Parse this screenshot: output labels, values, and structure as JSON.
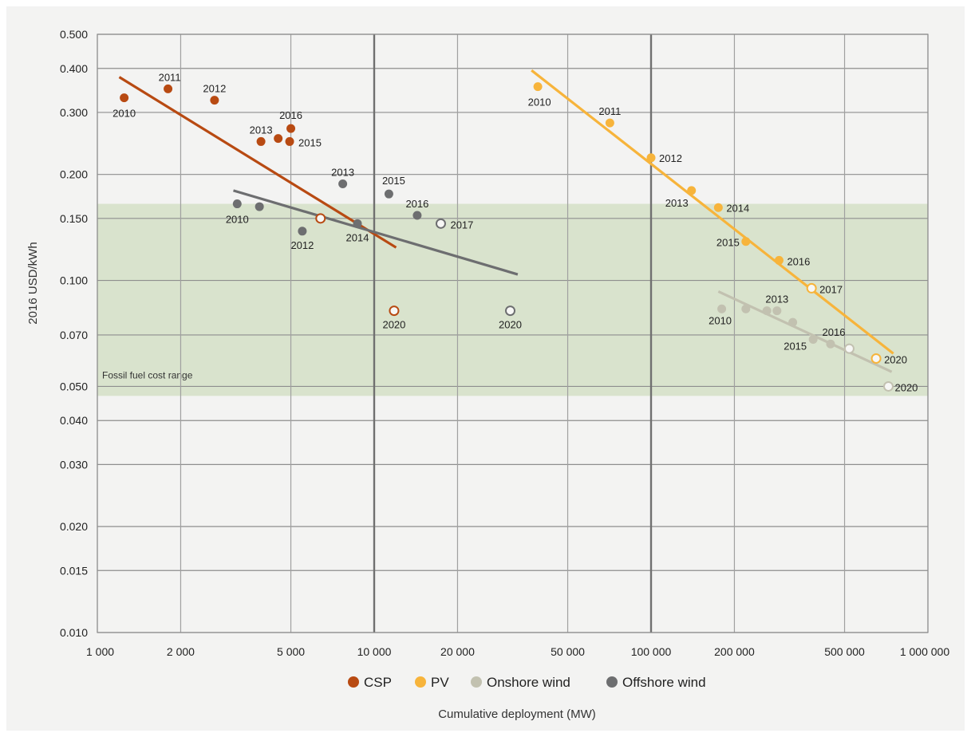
{
  "chart_data": {
    "type": "scatter",
    "title": "",
    "xlabel": "Cumulative deployment (MW)",
    "ylabel": "2016 USD/kWh",
    "x_scale": "log",
    "y_scale": "log",
    "xlim": [
      1000,
      1000000
    ],
    "ylim": [
      0.01,
      0.5
    ],
    "x_ticks": [
      1000,
      2000,
      5000,
      10000,
      20000,
      50000,
      100000,
      200000,
      500000,
      1000000
    ],
    "x_tick_labels": [
      "1 000",
      "2 000",
      "5 000",
      "10 000",
      "20 000",
      "50 000",
      "100 000",
      "200 000",
      "500 000",
      "1 000 000"
    ],
    "y_ticks": [
      0.01,
      0.015,
      0.02,
      0.03,
      0.04,
      0.05,
      0.07,
      0.1,
      0.15,
      0.2,
      0.3,
      0.4,
      0.5
    ],
    "y_tick_labels": [
      "0.010",
      "0.015",
      "0.020",
      "0.030",
      "0.040",
      "0.050",
      "0.070",
      "0.100",
      "0.150",
      "0.200",
      "0.300",
      "0.400",
      "0.500"
    ],
    "grid": true,
    "legend_position": "bottom",
    "band": {
      "label": "Fossil fuel cost range",
      "y_range": [
        0.047,
        0.165
      ],
      "color": "#d9e3cd"
    },
    "series": [
      {
        "name": "CSP",
        "color": "#b84a12",
        "points": [
          {
            "x": 1250,
            "y": 0.33,
            "label": "2010",
            "hollow": false
          },
          {
            "x": 1800,
            "y": 0.35,
            "label": "2011",
            "hollow": false
          },
          {
            "x": 2650,
            "y": 0.325,
            "label": "2012",
            "hollow": false
          },
          {
            "x": 3900,
            "y": 0.248,
            "label": "2013",
            "hollow": false
          },
          {
            "x": 4500,
            "y": 0.253,
            "label": "",
            "hollow": false
          },
          {
            "x": 4950,
            "y": 0.248,
            "label": "2015",
            "hollow": false
          },
          {
            "x": 5000,
            "y": 0.27,
            "label": "2016",
            "hollow": false
          },
          {
            "x": 6400,
            "y": 0.15,
            "label": "",
            "hollow": true
          },
          {
            "x": 11800,
            "y": 0.082,
            "label": "2020",
            "hollow": true
          }
        ],
        "trend": [
          [
            1200,
            0.378
          ],
          [
            12000,
            0.124
          ]
        ]
      },
      {
        "name": "PV",
        "color": "#f7b43b",
        "points": [
          {
            "x": 39000,
            "y": 0.355,
            "label": "2010",
            "hollow": false
          },
          {
            "x": 71000,
            "y": 0.28,
            "label": "2011",
            "hollow": false
          },
          {
            "x": 100000,
            "y": 0.223,
            "label": "2012",
            "hollow": false
          },
          {
            "x": 140000,
            "y": 0.18,
            "label": "2013",
            "hollow": false
          },
          {
            "x": 175000,
            "y": 0.161,
            "label": "2014",
            "hollow": false
          },
          {
            "x": 220000,
            "y": 0.129,
            "label": "2015",
            "hollow": false
          },
          {
            "x": 290000,
            "y": 0.114,
            "label": "2016",
            "hollow": false
          },
          {
            "x": 380000,
            "y": 0.095,
            "label": "2017",
            "hollow": true
          },
          {
            "x": 650000,
            "y": 0.06,
            "label": "2020",
            "hollow": true
          }
        ],
        "trend": [
          [
            37000,
            0.395
          ],
          [
            750000,
            0.062
          ]
        ]
      },
      {
        "name": "Onshore wind",
        "color": "#c2c1b0",
        "points": [
          {
            "x": 180000,
            "y": 0.083,
            "label": "2010",
            "hollow": false
          },
          {
            "x": 220000,
            "y": 0.083,
            "label": "",
            "hollow": false
          },
          {
            "x": 262000,
            "y": 0.082,
            "label": "",
            "hollow": false
          },
          {
            "x": 285000,
            "y": 0.082,
            "label": "2013",
            "hollow": false
          },
          {
            "x": 325000,
            "y": 0.076,
            "label": "",
            "hollow": false
          },
          {
            "x": 385000,
            "y": 0.068,
            "label": "2015",
            "hollow": false
          },
          {
            "x": 445000,
            "y": 0.066,
            "label": "2016",
            "hollow": false
          },
          {
            "x": 520000,
            "y": 0.064,
            "label": "",
            "hollow": true
          },
          {
            "x": 720000,
            "y": 0.05,
            "label": "2020",
            "hollow": true
          }
        ],
        "trend": [
          [
            175000,
            0.093
          ],
          [
            740000,
            0.055
          ]
        ]
      },
      {
        "name": "Offshore wind",
        "color": "#6d6e70",
        "points": [
          {
            "x": 3200,
            "y": 0.165,
            "label": "2010",
            "hollow": false
          },
          {
            "x": 3850,
            "y": 0.162,
            "label": "",
            "hollow": false
          },
          {
            "x": 5500,
            "y": 0.138,
            "label": "2012",
            "hollow": false
          },
          {
            "x": 7700,
            "y": 0.188,
            "label": "2013",
            "hollow": false
          },
          {
            "x": 8700,
            "y": 0.145,
            "label": "2014",
            "hollow": false
          },
          {
            "x": 11300,
            "y": 0.176,
            "label": "2015",
            "hollow": false
          },
          {
            "x": 14300,
            "y": 0.153,
            "label": "2016",
            "hollow": false
          },
          {
            "x": 17400,
            "y": 0.145,
            "label": "2017",
            "hollow": true
          },
          {
            "x": 31000,
            "y": 0.082,
            "label": "2020",
            "hollow": true
          }
        ],
        "trend": [
          [
            3100,
            0.18
          ],
          [
            33000,
            0.104
          ]
        ]
      }
    ]
  }
}
